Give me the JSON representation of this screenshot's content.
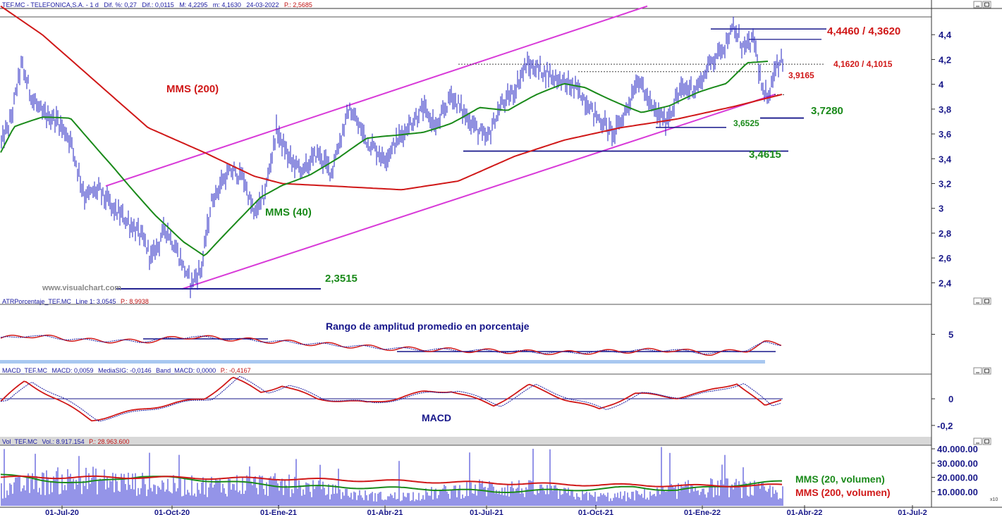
{
  "chart_data": [
    {
      "type": "line",
      "panel": "price",
      "header": {
        "symbol": "TEF.MC - TELEFONICA,S.A. - 1 d",
        "dif_pct": "Dif. %: 0,27",
        "dif": "Dif.: 0,0115",
        "max": "M: 4,2295",
        "min": "m: 4,1630",
        "date": "24-03-2022",
        "p": "P.: 2,5685"
      },
      "x_ticks": [
        "01-Jul-20",
        "01-Oct-20",
        "01-Ene-21",
        "01-Abr-21",
        "01-Jul-21",
        "01-Oct-21",
        "01-Ene-22",
        "01-Abr-22",
        "01-Jul-2"
      ],
      "y_ticks": [
        "4,4",
        "4,2",
        "4",
        "3,8",
        "3,6",
        "3,4",
        "3,2",
        "3",
        "2,8",
        "2,6",
        "2,4"
      ],
      "y_values": [
        4.4,
        4.2,
        4.0,
        3.8,
        3.6,
        3.4,
        3.2,
        3.0,
        2.8,
        2.6,
        2.4
      ],
      "ylim": [
        2.3,
        4.6
      ],
      "watermark": "www.visualchart.com",
      "series": [
        {
          "name": "MMS (200)",
          "color": "#d01818",
          "values": [
            [
              1,
              4.63
            ],
            [
              60,
              4.4
            ],
            [
              130,
              4.05
            ],
            [
              210,
              3.65
            ],
            [
              290,
              3.45
            ],
            [
              360,
              3.26
            ],
            [
              400,
              3.2
            ],
            [
              470,
              3.18
            ],
            [
              570,
              3.15
            ],
            [
              650,
              3.22
            ],
            [
              730,
              3.42
            ],
            [
              800,
              3.55
            ],
            [
              880,
              3.65
            ],
            [
              960,
              3.72
            ],
            [
              1040,
              3.82
            ],
            [
              1110,
              3.92
            ]
          ]
        },
        {
          "name": "MMS (40)",
          "color": "#1a8a1a",
          "values": [
            [
              1,
              3.45
            ],
            [
              20,
              3.65
            ],
            [
              60,
              3.72
            ],
            [
              100,
              3.72
            ],
            [
              160,
              3.35
            ],
            [
              220,
              2.95
            ],
            [
              260,
              2.72
            ],
            [
              290,
              2.6
            ],
            [
              330,
              2.85
            ],
            [
              370,
              3.1
            ],
            [
              400,
              3.2
            ],
            [
              440,
              3.28
            ],
            [
              480,
              3.4
            ],
            [
              520,
              3.55
            ],
            [
              560,
              3.58
            ],
            [
              600,
              3.62
            ],
            [
              640,
              3.7
            ],
            [
              680,
              3.82
            ],
            [
              720,
              3.78
            ],
            [
              760,
              3.9
            ],
            [
              800,
              4.0
            ],
            [
              830,
              3.98
            ],
            [
              870,
              3.88
            ],
            [
              910,
              3.78
            ],
            [
              950,
              3.82
            ],
            [
              990,
              3.92
            ],
            [
              1030,
              4.0
            ],
            [
              1060,
              4.18
            ],
            [
              1090,
              4.2
            ]
          ]
        }
      ],
      "price_series": {
        "name": "TEF.MC",
        "color": "#2020c0",
        "values": [
          [
            1,
            3.52
          ],
          [
            15,
            3.7
          ],
          [
            30,
            4.16
          ],
          [
            45,
            3.9
          ],
          [
            60,
            3.75
          ],
          [
            80,
            3.72
          ],
          [
            100,
            3.55
          ],
          [
            120,
            3.1
          ],
          [
            140,
            3.15
          ],
          [
            160,
            3.0
          ],
          [
            180,
            2.9
          ],
          [
            200,
            2.78
          ],
          [
            215,
            2.6
          ],
          [
            235,
            2.85
          ],
          [
            255,
            2.6
          ],
          [
            270,
            2.4
          ],
          [
            285,
            2.5
          ],
          [
            300,
            3.05
          ],
          [
            315,
            3.22
          ],
          [
            330,
            3.3
          ],
          [
            345,
            3.25
          ],
          [
            360,
            2.95
          ],
          [
            375,
            3.1
          ],
          [
            392,
            3.63
          ],
          [
            410,
            3.4
          ],
          [
            430,
            3.3
          ],
          [
            450,
            3.45
          ],
          [
            470,
            3.3
          ],
          [
            495,
            3.8
          ],
          [
            520,
            3.55
          ],
          [
            545,
            3.4
          ],
          [
            570,
            3.6
          ],
          [
            600,
            3.8
          ],
          [
            620,
            3.65
          ],
          [
            640,
            3.92
          ],
          [
            660,
            3.75
          ],
          [
            690,
            3.55
          ],
          [
            710,
            3.82
          ],
          [
            730,
            3.95
          ],
          [
            745,
            4.15
          ],
          [
            765,
            4.12
          ],
          [
            790,
            4.05
          ],
          [
            820,
            3.95
          ],
          [
            845,
            3.75
          ],
          [
            870,
            3.6
          ],
          [
            885,
            3.75
          ],
          [
            905,
            4.05
          ],
          [
            925,
            3.8
          ],
          [
            945,
            3.7
          ],
          [
            965,
            3.95
          ],
          [
            990,
            3.98
          ],
          [
            1010,
            4.2
          ],
          [
            1025,
            4.3
          ],
          [
            1040,
            4.44
          ],
          [
            1055,
            4.3
          ],
          [
            1070,
            4.35
          ],
          [
            1082,
            3.9
          ],
          [
            1090,
            3.92
          ],
          [
            1100,
            4.15
          ],
          [
            1110,
            4.22
          ]
        ]
      },
      "annotations": {
        "mms200": "MMS (200)",
        "mms40": "MMS (40)",
        "r1": "4,4460 / 4,3620",
        "r2": "4,1620 / 4,1015",
        "r3": "3,9165",
        "s1": "3,7280",
        "s2": "3,6525",
        "s3": "3,4615",
        "s4": "2,3515"
      }
    },
    {
      "type": "line",
      "panel": "atr",
      "header": {
        "name": "ATRPorcentaje_TEF.MC",
        "line1": "Line 1: 3,0545",
        "p": "P.: 8,9938"
      },
      "title": "Rango de amplitud promedio en porcentaje",
      "y_ticks": [
        "5"
      ],
      "y_values": [
        5
      ],
      "ylim": [
        0,
        10
      ],
      "colors": {
        "main": "#d01818",
        "signal": "#1a1aa0",
        "band": "#a8c8f0"
      }
    },
    {
      "type": "line",
      "panel": "macd",
      "header": {
        "name": "MACD_TEF.MC",
        "macd": "MACD: 0,0059",
        "signal": "MediaSIG: -0,0146",
        "band": "Band_MACD: 0,0000",
        "p": "P.: -0,4167"
      },
      "title": "MACD",
      "y_ticks": [
        "0",
        "-0,2"
      ],
      "y_values": [
        0,
        -0.2
      ],
      "ylim": [
        -0.28,
        0.18
      ],
      "colors": {
        "macd": "#d01818",
        "signal": "#1a1aa0"
      }
    },
    {
      "type": "bar",
      "panel": "volume",
      "header": {
        "name": "Vol_TEF.MC",
        "vol": "Vol.: 8.917.154",
        "p": "P.: 28.963.600"
      },
      "y_ticks": [
        "40.000.00",
        "30.000.00",
        "20.000.00",
        "10.000.00"
      ],
      "y_values": [
        40000000,
        30000000,
        20000000,
        10000000
      ],
      "ylim": [
        0,
        42000000
      ],
      "series": [
        {
          "name": "MMS (20, volumen)",
          "color": "#1a8a1a"
        },
        {
          "name": "MMS (200, volumen)",
          "color": "#d01818"
        }
      ],
      "x10": "x10"
    }
  ]
}
